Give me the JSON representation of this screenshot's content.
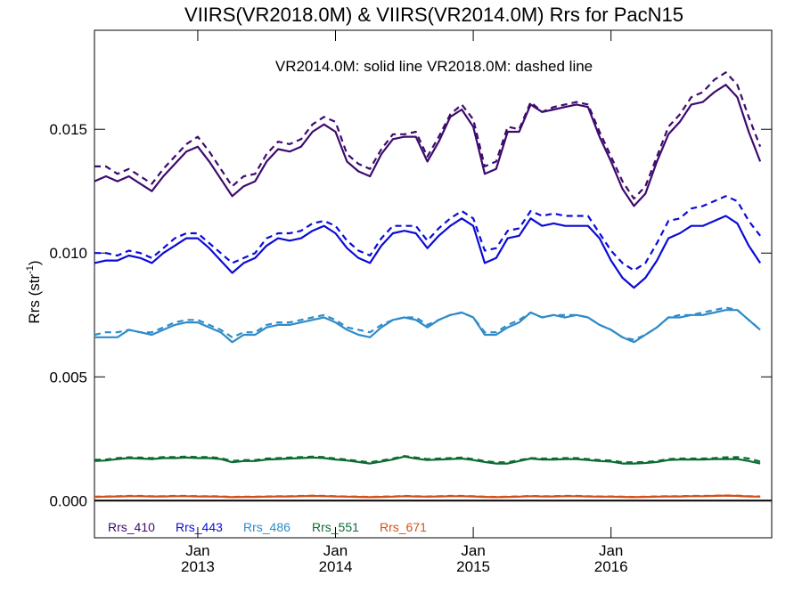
{
  "chart_data": {
    "type": "line",
    "title": "VIIRS(VR2018.0M) & VIIRS(VR2014.0M)  Rrs for PacN15",
    "annotation": "VR2014.0M: solid line   VR2018.0M: dashed line",
    "ylabel_main": "Rrs (str",
    "ylabel_sup": "-1",
    "ylabel_close": ")",
    "ylim": [
      -0.0015,
      0.019
    ],
    "yticks": [
      0.0,
      0.005,
      0.01,
      0.015
    ],
    "ytick_labels": [
      "0.000",
      "0.005",
      "0.010",
      "0.015"
    ],
    "x_unit": "months since 2012-01",
    "xlim": [
      3,
      62
    ],
    "xticks": [
      {
        "x": 12,
        "month": "Jan",
        "year": "2013"
      },
      {
        "x": 24,
        "month": "Jan",
        "year": "2014"
      },
      {
        "x": 36,
        "month": "Jan",
        "year": "2015"
      },
      {
        "x": 48,
        "month": "Jan",
        "year": "2016"
      }
    ],
    "x_start": 3,
    "legend_position": "bottom-left",
    "grid": false,
    "series": [
      {
        "name": "Rrs_410",
        "color": "#3d0a6e",
        "solid": [
          0.0129,
          0.0131,
          0.0129,
          0.0131,
          0.0128,
          0.0125,
          0.0131,
          0.0136,
          0.0141,
          0.0143,
          0.0137,
          0.013,
          0.0123,
          0.0127,
          0.0129,
          0.0137,
          0.0142,
          0.0141,
          0.0143,
          0.0149,
          0.0152,
          0.0149,
          0.0137,
          0.0133,
          0.0131,
          0.014,
          0.0146,
          0.0147,
          0.0147,
          0.0137,
          0.0145,
          0.0155,
          0.0158,
          0.0151,
          0.0132,
          0.0134,
          0.0149,
          0.0149,
          0.016,
          0.0157,
          0.0158,
          0.0159,
          0.016,
          0.0159,
          0.0147,
          0.0137,
          0.0126,
          0.0119,
          0.0124,
          0.0137,
          0.0148,
          0.0153,
          0.016,
          0.0161,
          0.0165,
          0.0168,
          0.0163,
          0.0149,
          0.0137
        ],
        "dashed": [
          0.0135,
          0.0135,
          0.0132,
          0.0134,
          0.0131,
          0.0128,
          0.0134,
          0.0139,
          0.0144,
          0.0147,
          0.0141,
          0.0134,
          0.0127,
          0.0131,
          0.0132,
          0.014,
          0.0145,
          0.0144,
          0.0146,
          0.0152,
          0.0155,
          0.0153,
          0.014,
          0.0136,
          0.0134,
          0.0142,
          0.0148,
          0.0148,
          0.0149,
          0.0139,
          0.0147,
          0.0156,
          0.016,
          0.0154,
          0.0135,
          0.0137,
          0.0151,
          0.015,
          0.0161,
          0.0157,
          0.0159,
          0.016,
          0.0161,
          0.016,
          0.0149,
          0.0139,
          0.0129,
          0.0122,
          0.0127,
          0.0139,
          0.0151,
          0.0156,
          0.0163,
          0.0165,
          0.017,
          0.0173,
          0.0168,
          0.0155,
          0.0143
        ]
      },
      {
        "name": "Rrs_443",
        "color": "#0b0bd6",
        "solid": [
          0.0096,
          0.0097,
          0.0097,
          0.0099,
          0.0098,
          0.0096,
          0.01,
          0.0103,
          0.0106,
          0.0106,
          0.0102,
          0.0097,
          0.0092,
          0.0096,
          0.0098,
          0.0103,
          0.0106,
          0.0105,
          0.0106,
          0.0109,
          0.0111,
          0.0108,
          0.0102,
          0.0098,
          0.0096,
          0.0103,
          0.0108,
          0.0109,
          0.0108,
          0.0102,
          0.0107,
          0.0111,
          0.0114,
          0.0111,
          0.0096,
          0.0098,
          0.0106,
          0.0107,
          0.0114,
          0.0111,
          0.0112,
          0.0111,
          0.0111,
          0.0111,
          0.0106,
          0.0097,
          0.009,
          0.0086,
          0.009,
          0.0097,
          0.0106,
          0.0108,
          0.0111,
          0.0111,
          0.0113,
          0.0115,
          0.0112,
          0.0103,
          0.0096
        ],
        "dashed": [
          0.01,
          0.01,
          0.0099,
          0.0101,
          0.01,
          0.0098,
          0.0102,
          0.0106,
          0.0108,
          0.0108,
          0.0104,
          0.01,
          0.0096,
          0.0098,
          0.01,
          0.0106,
          0.0108,
          0.0108,
          0.0109,
          0.0112,
          0.0113,
          0.0111,
          0.0105,
          0.0101,
          0.0099,
          0.0106,
          0.0111,
          0.0111,
          0.0111,
          0.0105,
          0.011,
          0.0114,
          0.0117,
          0.0114,
          0.0101,
          0.0102,
          0.0109,
          0.011,
          0.0117,
          0.0115,
          0.0116,
          0.0115,
          0.0115,
          0.0115,
          0.0108,
          0.0101,
          0.0096,
          0.0093,
          0.0096,
          0.0104,
          0.0113,
          0.0114,
          0.0118,
          0.0119,
          0.0121,
          0.0123,
          0.0121,
          0.0113,
          0.0107
        ]
      },
      {
        "name": "Rrs_486",
        "color": "#2f8bc9",
        "solid": [
          0.0066,
          0.0066,
          0.0066,
          0.0069,
          0.0068,
          0.0067,
          0.0069,
          0.0071,
          0.0072,
          0.0072,
          0.007,
          0.0068,
          0.0064,
          0.0067,
          0.0067,
          0.007,
          0.0071,
          0.0071,
          0.0072,
          0.0073,
          0.0074,
          0.0072,
          0.0069,
          0.0067,
          0.0066,
          0.007,
          0.0073,
          0.0074,
          0.0073,
          0.007,
          0.0073,
          0.0075,
          0.0076,
          0.0074,
          0.0067,
          0.0067,
          0.007,
          0.0072,
          0.0076,
          0.0074,
          0.0075,
          0.0074,
          0.0075,
          0.0074,
          0.0071,
          0.0069,
          0.0066,
          0.0064,
          0.0067,
          0.007,
          0.0074,
          0.0074,
          0.0075,
          0.0075,
          0.0076,
          0.0077,
          0.0077,
          0.0073,
          0.0069
        ],
        "dashed": [
          0.0067,
          0.0068,
          0.0068,
          0.0069,
          0.0068,
          0.0068,
          0.007,
          0.0072,
          0.0073,
          0.0073,
          0.0071,
          0.0069,
          0.0066,
          0.0068,
          0.0068,
          0.0071,
          0.0072,
          0.0072,
          0.0073,
          0.0074,
          0.0075,
          0.0073,
          0.007,
          0.0069,
          0.0068,
          0.0071,
          0.0073,
          0.0074,
          0.0074,
          0.0071,
          0.0073,
          0.0075,
          0.0076,
          0.0074,
          0.0068,
          0.0068,
          0.0071,
          0.0073,
          0.0076,
          0.0074,
          0.0075,
          0.0075,
          0.0075,
          0.0074,
          0.0071,
          0.0069,
          0.0066,
          0.0065,
          0.0067,
          0.007,
          0.0074,
          0.0075,
          0.0075,
          0.0076,
          0.0077,
          0.0078,
          0.0077,
          0.0073,
          0.0069
        ]
      },
      {
        "name": "Rrs_551",
        "color": "#0c6b33",
        "solid": [
          0.0016,
          0.00162,
          0.00168,
          0.00172,
          0.0017,
          0.00168,
          0.00172,
          0.00172,
          0.00174,
          0.00172,
          0.00172,
          0.00168,
          0.00155,
          0.0016,
          0.0016,
          0.00166,
          0.00168,
          0.0017,
          0.00172,
          0.00174,
          0.00172,
          0.00166,
          0.00162,
          0.00156,
          0.0015,
          0.00158,
          0.00166,
          0.00178,
          0.0017,
          0.00164,
          0.00166,
          0.00168,
          0.0017,
          0.00164,
          0.00156,
          0.0015,
          0.0015,
          0.0016,
          0.0017,
          0.00166,
          0.00166,
          0.00168,
          0.00168,
          0.00164,
          0.0016,
          0.00158,
          0.0015,
          0.0015,
          0.00152,
          0.00156,
          0.00164,
          0.00166,
          0.00166,
          0.00166,
          0.00168,
          0.00168,
          0.00168,
          0.0016,
          0.0015
        ],
        "dashed": [
          0.00165,
          0.00166,
          0.00172,
          0.00175,
          0.00174,
          0.00172,
          0.00176,
          0.00176,
          0.00178,
          0.00176,
          0.00176,
          0.00172,
          0.0016,
          0.00164,
          0.00164,
          0.0017,
          0.00172,
          0.00174,
          0.00176,
          0.00178,
          0.00176,
          0.0017,
          0.00166,
          0.0016,
          0.00155,
          0.00162,
          0.0017,
          0.0018,
          0.00174,
          0.00168,
          0.0017,
          0.00172,
          0.00174,
          0.00168,
          0.0016,
          0.00155,
          0.00155,
          0.00164,
          0.00172,
          0.0017,
          0.0017,
          0.00172,
          0.00172,
          0.00168,
          0.00164,
          0.00162,
          0.00155,
          0.00155,
          0.00156,
          0.0016,
          0.00168,
          0.0017,
          0.0017,
          0.0017,
          0.00172,
          0.00175,
          0.00176,
          0.0017,
          0.00158
        ]
      },
      {
        "name": "Rrs_671",
        "color": "#d4501a",
        "solid": [
          0.00015,
          0.00016,
          0.00017,
          0.00018,
          0.00018,
          0.00017,
          0.00017,
          0.00018,
          0.00018,
          0.00017,
          0.00017,
          0.00016,
          0.00014,
          0.00015,
          0.00015,
          0.00016,
          0.00017,
          0.00017,
          0.00018,
          0.00019,
          0.00018,
          0.00017,
          0.00016,
          0.00015,
          0.00014,
          0.00015,
          0.00016,
          0.00018,
          0.00017,
          0.00016,
          0.00017,
          0.00018,
          0.00018,
          0.00017,
          0.00015,
          0.00014,
          0.00015,
          0.00016,
          0.00018,
          0.00017,
          0.00017,
          0.00018,
          0.00018,
          0.00017,
          0.00016,
          0.00016,
          0.00015,
          0.00014,
          0.00015,
          0.00016,
          0.00017,
          0.00017,
          0.00018,
          0.00018,
          0.00019,
          0.0002,
          0.00019,
          0.00017,
          0.00016
        ],
        "dashed": [
          0.00016,
          0.00017,
          0.00018,
          0.00019,
          0.00019,
          0.00018,
          0.00018,
          0.00019,
          0.00019,
          0.00018,
          0.00018,
          0.00017,
          0.00015,
          0.00016,
          0.00016,
          0.00017,
          0.00018,
          0.00018,
          0.00019,
          0.0002,
          0.00019,
          0.00018,
          0.00017,
          0.00016,
          0.00015,
          0.00016,
          0.00017,
          0.00019,
          0.00018,
          0.00017,
          0.00018,
          0.00019,
          0.00019,
          0.00018,
          0.00016,
          0.00015,
          0.00016,
          0.00017,
          0.00019,
          0.00018,
          0.00018,
          0.00019,
          0.00019,
          0.00018,
          0.00017,
          0.00017,
          0.00016,
          0.00015,
          0.00016,
          0.00017,
          0.00018,
          0.00018,
          0.00019,
          0.00019,
          0.0002,
          0.00021,
          0.0002,
          0.00018,
          0.00017
        ]
      }
    ],
    "zero_line": 0.0
  }
}
